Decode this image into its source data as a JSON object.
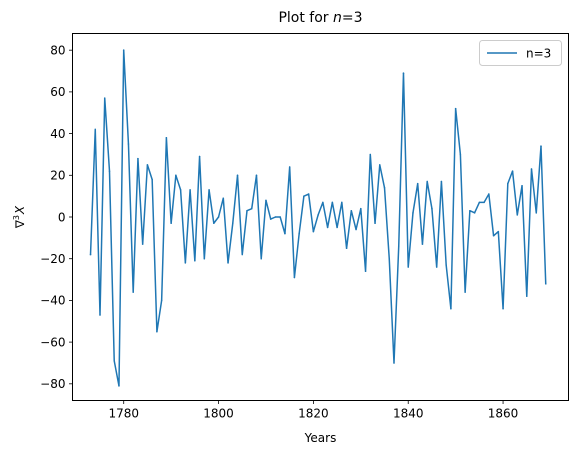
{
  "chart_data": {
    "type": "line",
    "title_prefix": "Plot for ",
    "title_var": "n",
    "title_suffix": "=3",
    "xlabel": "Years",
    "ylabel_main": "∇",
    "ylabel_sup": "3",
    "ylabel_var": "X",
    "xlim": [
      1769.2,
      1873.8
    ],
    "ylim": [
      -88.0,
      88.0
    ],
    "xticks": [
      1780,
      1800,
      1820,
      1840,
      1860
    ],
    "yticks": [
      -80,
      -60,
      -40,
      -20,
      0,
      20,
      40,
      60,
      80
    ],
    "legend_position": "top-right",
    "grid": false,
    "series": [
      {
        "name": "n=3",
        "color": "#1f77b4",
        "x": [
          1773,
          1774,
          1775,
          1776,
          1777,
          1778,
          1779,
          1780,
          1781,
          1782,
          1783,
          1784,
          1785,
          1786,
          1787,
          1788,
          1789,
          1790,
          1791,
          1792,
          1793,
          1794,
          1795,
          1796,
          1797,
          1798,
          1799,
          1800,
          1801,
          1802,
          1803,
          1804,
          1805,
          1806,
          1807,
          1808,
          1809,
          1810,
          1811,
          1812,
          1813,
          1814,
          1815,
          1816,
          1817,
          1818,
          1819,
          1820,
          1821,
          1822,
          1823,
          1824,
          1825,
          1826,
          1827,
          1828,
          1829,
          1830,
          1831,
          1832,
          1833,
          1834,
          1835,
          1836,
          1837,
          1838,
          1839,
          1840,
          1841,
          1842,
          1843,
          1844,
          1845,
          1846,
          1847,
          1848,
          1849,
          1850,
          1851,
          1852,
          1853,
          1854,
          1855,
          1856,
          1857,
          1858,
          1859,
          1860,
          1861,
          1862,
          1863,
          1864,
          1865,
          1866,
          1867,
          1868,
          1869
        ],
        "y": [
          -18,
          42,
          -47,
          57,
          22,
          -69,
          -81,
          80,
          35,
          -36,
          28,
          -13,
          25,
          18,
          -55,
          -40,
          38,
          -3,
          20,
          13,
          -22,
          13,
          -21,
          29,
          -20,
          13,
          -3,
          0,
          9,
          -22,
          -3,
          20,
          -18,
          3,
          4,
          20,
          -20,
          8,
          -1,
          0,
          0,
          -8,
          24,
          -29,
          -8,
          10,
          11,
          -7,
          1,
          7,
          -5,
          7,
          -5,
          7,
          -15,
          3,
          -6,
          4,
          -26,
          30,
          -3,
          25,
          14,
          -20,
          -70,
          -14,
          69,
          -24,
          2,
          16,
          -13,
          17,
          4,
          -24,
          17,
          -23,
          -44,
          52,
          30,
          -36,
          3,
          2,
          7,
          7,
          11,
          -9,
          -7,
          -44,
          16,
          22,
          1,
          15,
          -38,
          23,
          2,
          34,
          -32
        ]
      }
    ]
  }
}
